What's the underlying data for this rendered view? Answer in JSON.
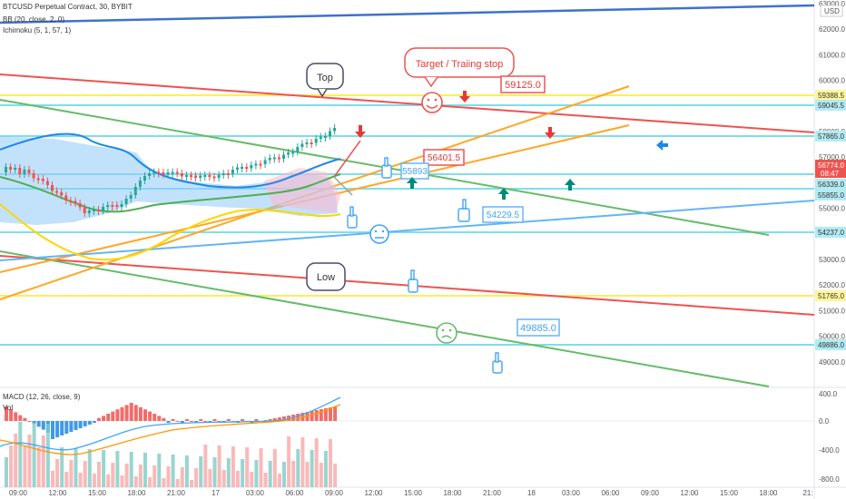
{
  "header": {
    "symbol_line": "BTCUSD Perpetual Contract, 30, BYBIT",
    "indicator_1": "BB (20, close, 2, 0)",
    "indicator_2": "Ichimoku (5, 1, 57, 1)"
  },
  "currency": "USD",
  "price_axis": [
    "63000.0",
    "62000.0",
    "61000.0",
    "60000.0",
    "59000.0",
    "58000.0",
    "57000.0",
    "56000.0",
    "55000.0",
    "54000.0",
    "53000.0",
    "52000.0",
    "51000.0",
    "50000.0",
    "49000.0"
  ],
  "price_badges": {
    "p59388": "59388.5",
    "p59045": "59045.5",
    "p57865": "57865.0",
    "last_price": "56774.0",
    "countdown": "08:47",
    "p56339": "56339.0",
    "p55855": "55855.0",
    "p54237": "54237.0",
    "p51765": "51765.0",
    "p49886": "49886.0"
  },
  "macd_axis": [
    "400.0",
    "0.0",
    "-400.0",
    "-800.0"
  ],
  "macd_legend": "MACD (12, 26, close, 9)",
  "vol_legend": "Vol",
  "time_axis": [
    "09:00",
    "12:00",
    "15:00",
    "18:00",
    "21:00",
    "17",
    "03:00",
    "06:00",
    "09:00",
    "12:00",
    "15:00",
    "18:00",
    "21:00",
    "18",
    "03:00",
    "06:00",
    "09:00",
    "12:00",
    "15:00",
    "18:00",
    "21:"
  ],
  "annotations": {
    "top_bubble": "Top",
    "low_bubble": "Low",
    "target_bubble": "Target / Traiing stop",
    "label_59125": "59125.0",
    "label_56401": "56401.5",
    "label_5589": "55893",
    "label_54229": "54229.5",
    "label_49885": "49885.0"
  },
  "colors": {
    "bull": "#26a69a",
    "bear": "#ef5350",
    "bb_upper": "#1e88e5",
    "bb_basis": "#4caf50",
    "bb_lower": "#ffd600",
    "cloud": "#90caf9",
    "red_line": "#ef5350",
    "green_line": "#66bb6a",
    "orange_line": "#ffa726",
    "blue_line": "#64b5f6",
    "yellow_hline": "#ffee58",
    "cyan_hline": "#80deea",
    "blue_trend": "#3f72c9"
  }
}
